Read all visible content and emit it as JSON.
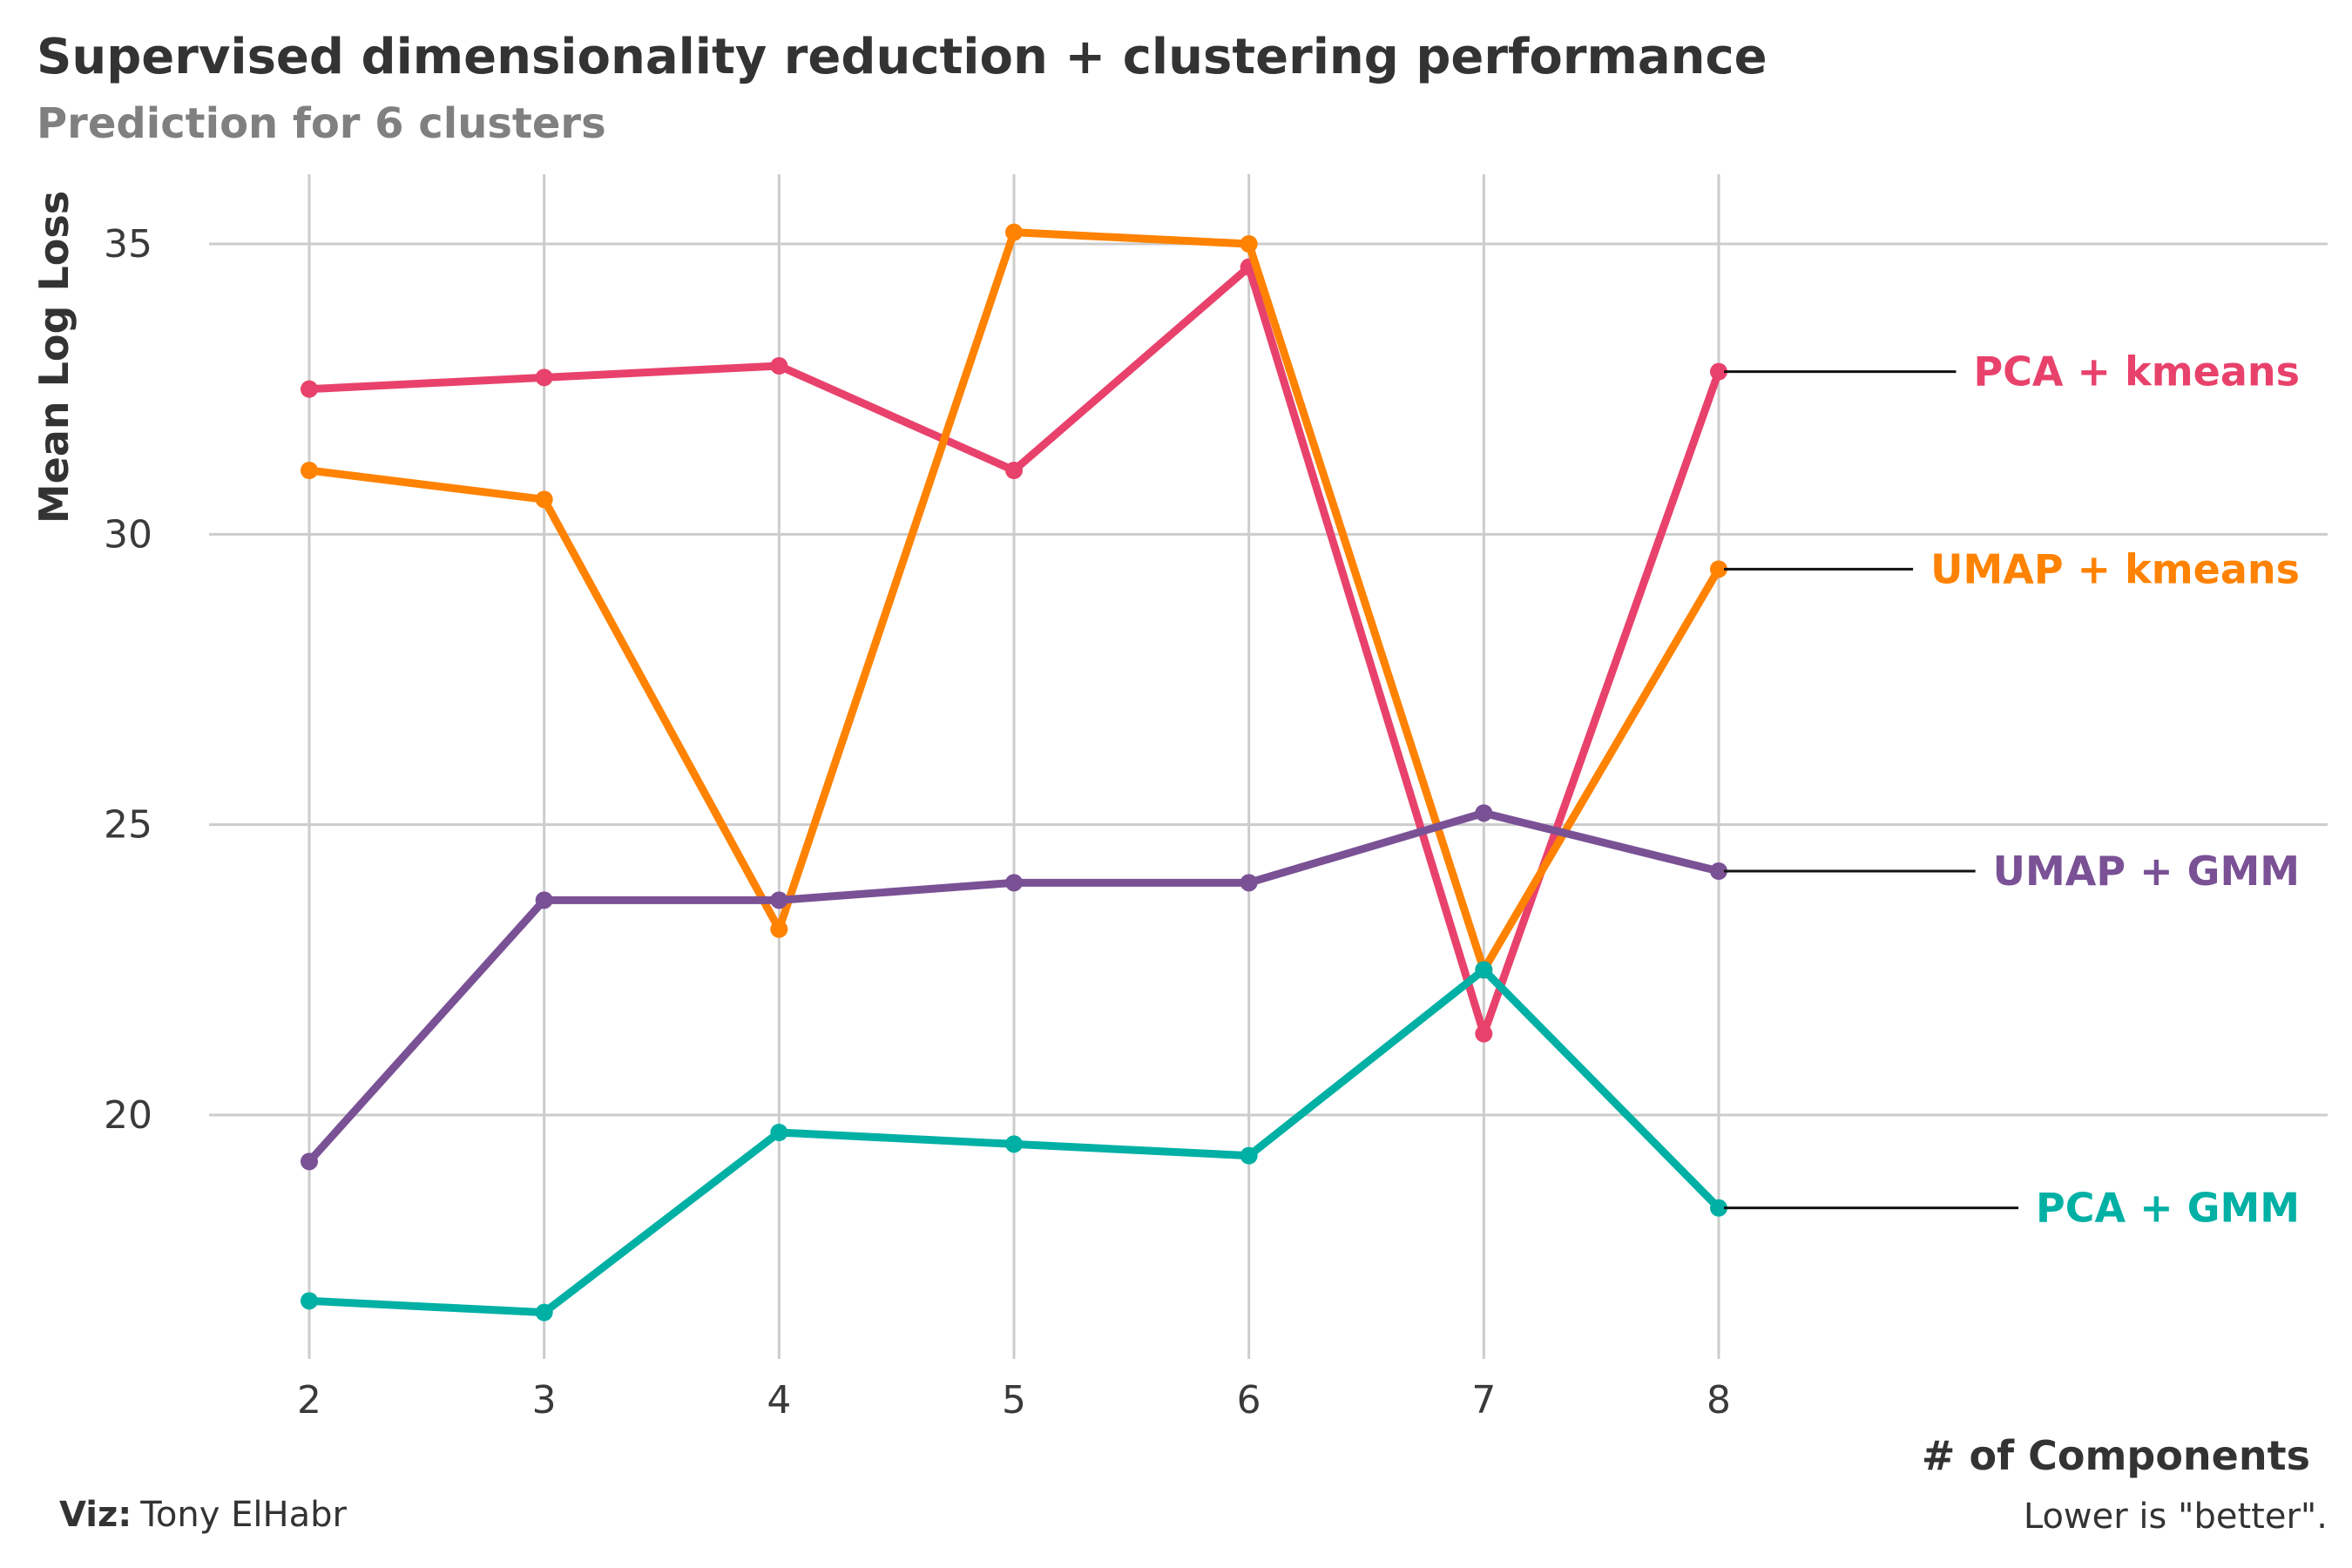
{
  "chart_data": {
    "type": "line",
    "title": "Supervised dimensionality reduction + clustering performance",
    "subtitle": "Prediction for 6 clusters",
    "xlabel": "# of Components",
    "ylabel": "Mean Log Loss",
    "x": [
      2,
      3,
      4,
      5,
      6,
      7,
      8
    ],
    "x_ticks": [
      "2",
      "3",
      "4",
      "5",
      "6",
      "7",
      "8"
    ],
    "y_ticks": [
      "20",
      "25",
      "30",
      "35"
    ],
    "ylim": [
      15.8,
      36.2
    ],
    "grid": true,
    "legend": "direct labels at right",
    "series": [
      {
        "name": "PCA + kmeans",
        "color": "#E8426C",
        "values": [
          32.5,
          32.7,
          32.9,
          31.1,
          34.6,
          21.4,
          32.8
        ]
      },
      {
        "name": "UMAP + kmeans",
        "color": "#FF8200",
        "values": [
          31.1,
          30.6,
          23.2,
          35.2,
          35.0,
          22.5,
          29.4
        ]
      },
      {
        "name": "UMAP + GMM",
        "color": "#7A5195",
        "values": [
          19.2,
          23.7,
          23.7,
          24.0,
          24.0,
          25.2,
          24.2
        ]
      },
      {
        "name": "PCA + GMM",
        "color": "#00B0A4",
        "values": [
          16.8,
          16.6,
          19.7,
          19.5,
          19.3,
          22.5,
          18.4
        ]
      }
    ]
  },
  "caption": {
    "viz_label": "Viz:",
    "viz_author": "Tony ElHabr",
    "note": "Lower is \"better\"."
  }
}
